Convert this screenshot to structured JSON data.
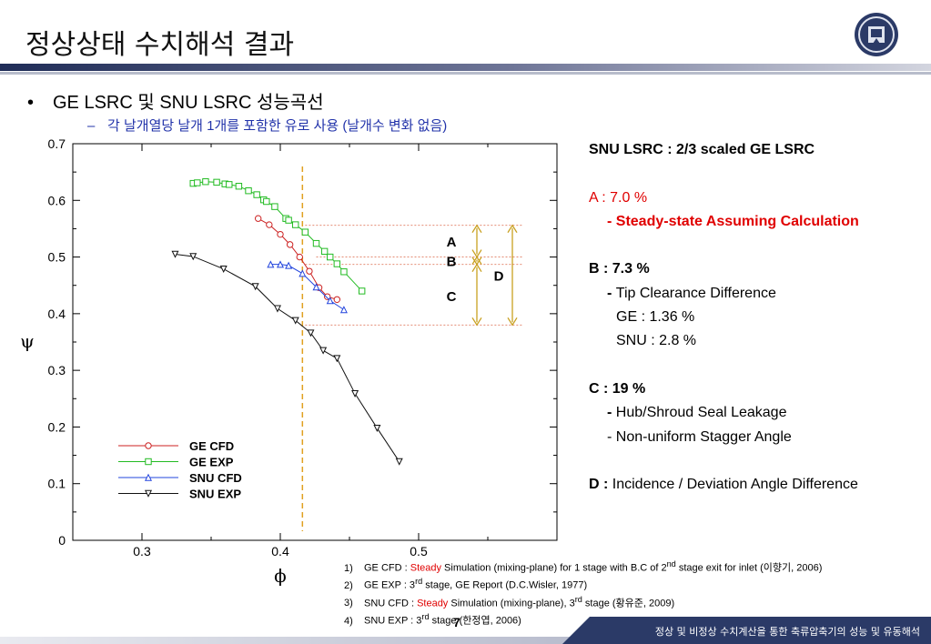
{
  "slide": {
    "title": "정상상태 수치해석 결과",
    "page_number": "7",
    "footer": "정상 및 비정상 수치계산을 통한 축류압축기의 성능 및 유동해석"
  },
  "bullets": {
    "level1_marker": "•",
    "level1": "GE LSRC 및 SNU LSRC 성능곡선",
    "level2_marker": "–",
    "level2": "각 날개열당 날개 1개를 포함한 유로 사용 (날개수 변화 없음)"
  },
  "notes": {
    "heading": "SNU LSRC : 2/3 scaled GE LSRC",
    "a_line": "A : 7.0 %",
    "a_detail": "- Steady-state Assuming Calculation",
    "b_line": "B : 7.3 %",
    "b_detail_dash": "- ",
    "b_detail": "Tip Clearance Difference",
    "b_ge": "GE : 1.36 %",
    "b_snu": "SNU : 2.8 %",
    "c_line": "C : 19 %",
    "c_detail1_dash": "- ",
    "c_detail1": "Hub/Shroud Seal Leakage",
    "c_detail2": "- Non-uniform Stagger Angle",
    "d_label": "D : ",
    "d_detail": "Incidence / Deviation Angle Difference"
  },
  "references": [
    {
      "num": "1)",
      "pre": "GE CFD : ",
      "red": "Steady",
      "post": " Simulation (mixing-plane) for 1 stage with B.C of 2",
      "sup": "nd",
      "tail": " stage exit for inlet (이향기, 2006)"
    },
    {
      "num": "2)",
      "pre": "GE EXP : 3",
      "red": "",
      "post": "",
      "sup": "rd",
      "tail": " stage, GE Report (D.C.Wisler, 1977)"
    },
    {
      "num": "3)",
      "pre": "SNU CFD : ",
      "red": "Steady",
      "post": " Simulation (mixing-plane), 3",
      "sup": "rd",
      "tail": " stage (황유준, 2009)"
    },
    {
      "num": "4)",
      "pre": "SNU EXP : 3",
      "red": "",
      "post": "",
      "sup": "rd",
      "tail": " stage (한정엽, 2006)"
    }
  ],
  "chart_data": {
    "type": "line",
    "xlabel": "ϕ",
    "ylabel": "ψ",
    "xlim": [
      0.25,
      0.6
    ],
    "ylim": [
      0,
      0.7
    ],
    "xticks": [
      "0.3",
      "0.4",
      "0.5"
    ],
    "yticks": [
      "0",
      "0.1",
      "0.2",
      "0.3",
      "0.4",
      "0.5",
      "0.6",
      "0.7"
    ],
    "legend_position": "lower-left",
    "series": [
      {
        "name": "GE CFD",
        "color": "#cc2222",
        "marker": "circle",
        "x": [
          0.384,
          0.392,
          0.4,
          0.407,
          0.414,
          0.421,
          0.428,
          0.434,
          0.441
        ],
        "y": [
          0.568,
          0.557,
          0.54,
          0.522,
          0.5,
          0.475,
          0.446,
          0.43,
          0.425
        ]
      },
      {
        "name": "GE EXP",
        "color": "#22bb22",
        "marker": "square",
        "x": [
          0.337,
          0.34,
          0.346,
          0.354,
          0.36,
          0.363,
          0.37,
          0.377,
          0.383,
          0.388,
          0.39,
          0.396,
          0.404,
          0.406,
          0.411,
          0.418,
          0.426,
          0.432,
          0.436,
          0.441,
          0.446,
          0.459
        ],
        "y": [
          0.63,
          0.631,
          0.633,
          0.632,
          0.629,
          0.628,
          0.625,
          0.617,
          0.61,
          0.601,
          0.598,
          0.589,
          0.568,
          0.565,
          0.557,
          0.544,
          0.524,
          0.51,
          0.5,
          0.488,
          0.474,
          0.44
        ]
      },
      {
        "name": "SNU CFD",
        "color": "#2244dd",
        "marker": "triangle",
        "x": [
          0.393,
          0.4,
          0.406,
          0.416,
          0.426,
          0.436,
          0.446
        ],
        "y": [
          0.487,
          0.487,
          0.485,
          0.471,
          0.447,
          0.423,
          0.407
        ]
      },
      {
        "name": "SNU EXP",
        "color": "#111111",
        "marker": "triangle-down",
        "x": [
          0.324,
          0.337,
          0.359,
          0.382,
          0.398,
          0.411,
          0.422,
          0.431,
          0.441,
          0.454,
          0.47,
          0.486
        ],
        "y": [
          0.505,
          0.501,
          0.479,
          0.448,
          0.409,
          0.388,
          0.366,
          0.335,
          0.321,
          0.259,
          0.198,
          0.139
        ]
      }
    ],
    "design_point_x": 0.416,
    "annotations": [
      "A",
      "B",
      "C",
      "D"
    ]
  },
  "colors": {
    "title_bar_dark": "#2b3a67",
    "title_bar_light": "#c9ccd6",
    "dashed_line": "#e0a020",
    "annotation_arrow": "#c8a020",
    "red_text": "#e00000",
    "blue_text": "#2233aa"
  }
}
